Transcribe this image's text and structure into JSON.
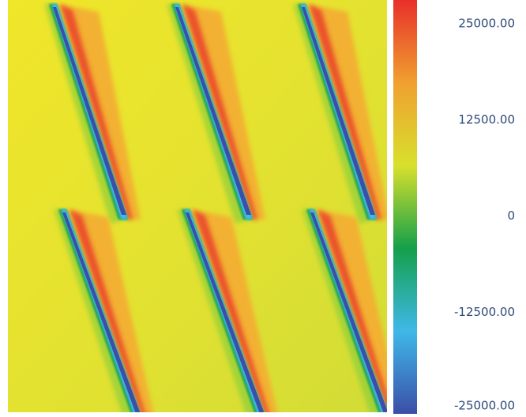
{
  "chart_data": {
    "type": "contour",
    "clim": [
      -25000,
      25000
    ],
    "colormap": [
      "#3b4fa8",
      "#3fb8e8",
      "#14a04a",
      "#d8e02c",
      "#f0a030",
      "#e8302a"
    ],
    "colorbar_ticks": [
      {
        "value": 25000,
        "label": "25000.00"
      },
      {
        "value": 12500,
        "label": "12500.00"
      },
      0,
      {
        "value": -12500,
        "label": "-12500.00"
      },
      {
        "value": -25000,
        "label": "-25000.00"
      }
    ]
  }
}
